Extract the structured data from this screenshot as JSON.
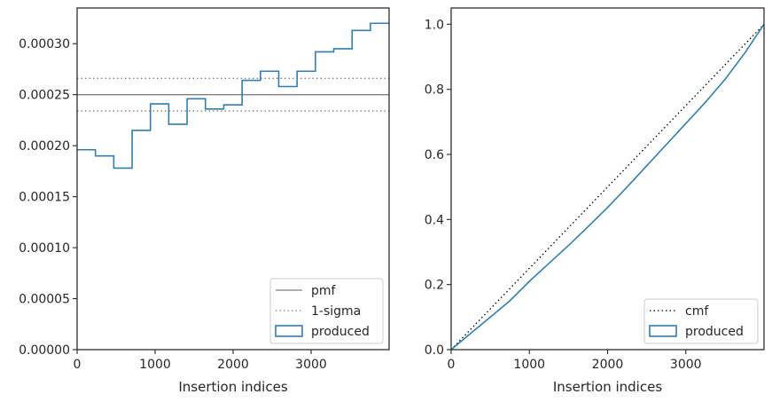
{
  "chart_data": [
    {
      "type": "line",
      "xlabel": "Insertion indices",
      "ylabel": "",
      "xlim": [
        0,
        4000
      ],
      "ylim": [
        0,
        0.000335
      ],
      "xticks": [
        0,
        1000,
        2000,
        3000
      ],
      "xtick_labels": [
        "0",
        "1000",
        "2000",
        "3000"
      ],
      "yticks": [
        0,
        5e-05,
        0.0001,
        0.00015,
        0.0002,
        0.00025,
        0.0003
      ],
      "ytick_labels": [
        "0.00000",
        "0.00005",
        "0.00010",
        "0.00015",
        "0.00020",
        "0.00025",
        "0.00030"
      ],
      "grid": false,
      "legend_position": "lower-right",
      "series": [
        {
          "name": "pmf",
          "style": "solid",
          "color": "#808080",
          "x": [
            0,
            4000
          ],
          "y": [
            0.00025,
            0.00025
          ]
        },
        {
          "name": "1-sigma",
          "style": "dotted",
          "color": "#808080",
          "x": [
            0,
            4000
          ],
          "y": [
            0.000266,
            0.000266
          ]
        },
        {
          "name": "",
          "style": "dotted",
          "color": "#808080",
          "x": [
            0,
            4000
          ],
          "y": [
            0.000234,
            0.000234
          ]
        },
        {
          "name": "produced",
          "style": "step",
          "color": "#2f7fb0",
          "bin_edges": [
            0,
            235,
            470,
            705,
            940,
            1175,
            1410,
            1645,
            1880,
            2115,
            2350,
            2585,
            2820,
            3055,
            3290,
            3525,
            3760,
            4000
          ],
          "values": [
            0.000196,
            0.00019,
            0.000178,
            0.000215,
            0.000241,
            0.000221,
            0.000246,
            0.000236,
            0.00024,
            0.000264,
            0.000273,
            0.000258,
            0.000273,
            0.000292,
            0.000295,
            0.000313,
            0.00032
          ]
        }
      ]
    },
    {
      "type": "line",
      "xlabel": "Insertion indices",
      "ylabel": "",
      "xlim": [
        0,
        4000
      ],
      "ylim": [
        0,
        1.05
      ],
      "xticks": [
        0,
        1000,
        2000,
        3000
      ],
      "xtick_labels": [
        "0",
        "1000",
        "2000",
        "3000"
      ],
      "yticks": [
        0,
        0.2,
        0.4,
        0.6,
        0.8,
        1.0
      ],
      "ytick_labels": [
        "0.0",
        "0.2",
        "0.4",
        "0.6",
        "0.8",
        "1.0"
      ],
      "grid": false,
      "legend_position": "lower-right",
      "series": [
        {
          "name": "cmf",
          "style": "dotted",
          "color": "#000000",
          "x": [
            0,
            4000
          ],
          "y": [
            0,
            1.0
          ]
        },
        {
          "name": "produced",
          "style": "solid",
          "color": "#2f7fb0",
          "x": [
            0,
            250,
            500,
            750,
            1000,
            1250,
            1500,
            1750,
            2000,
            2250,
            2500,
            2750,
            3000,
            3250,
            3500,
            3750,
            4000
          ],
          "y": [
            0,
            0.05,
            0.1,
            0.15,
            0.21,
            0.265,
            0.32,
            0.378,
            0.437,
            0.5,
            0.565,
            0.63,
            0.695,
            0.76,
            0.83,
            0.91,
            1.0
          ]
        }
      ]
    }
  ]
}
